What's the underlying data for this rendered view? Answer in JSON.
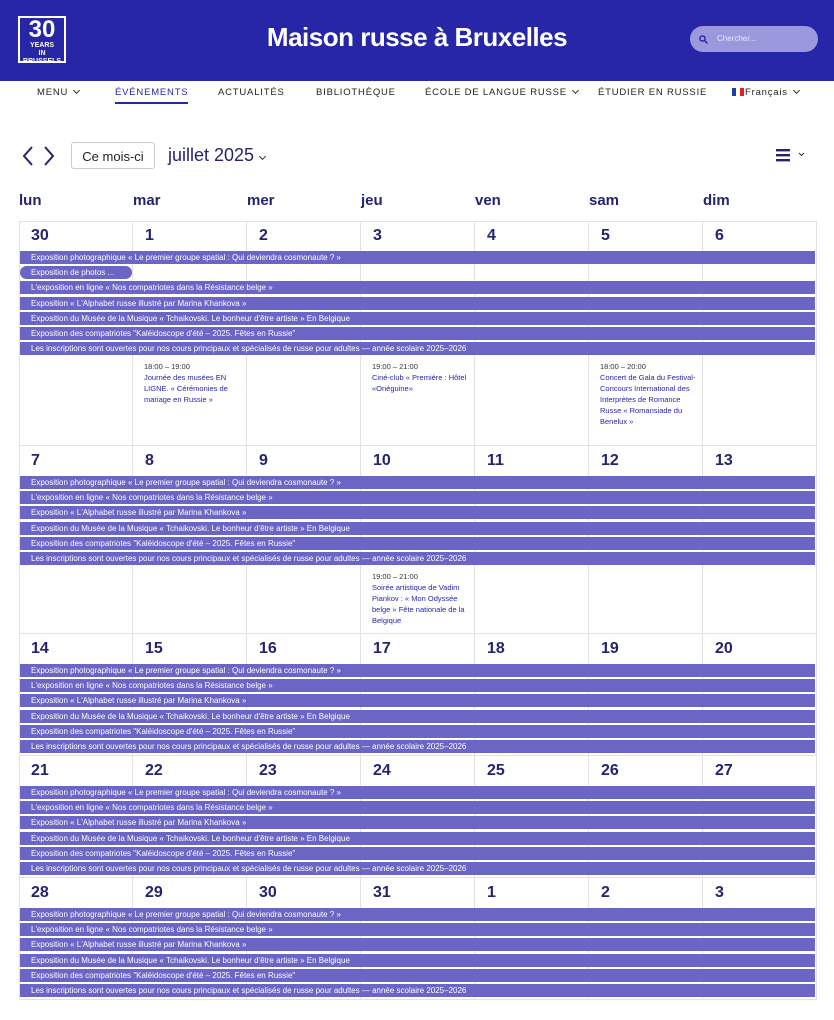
{
  "header": {
    "logo": {
      "number": "30",
      "line1": "YEARS",
      "line2": "IN BRUSSELS"
    },
    "title": "Maison russe à Bruxelles",
    "search_placeholder": "Chercher..."
  },
  "nav": [
    "MENU",
    "ÉVÉNEMENTS",
    "ACTUALITÉS",
    "BIBLIOTHÈQUE",
    "ÉCOLE DE LANGUE RUSSE",
    "ÉTUDIER EN RUSSIE",
    "Français"
  ],
  "toolbar": {
    "today": "Ce mois-ci",
    "month": "juillet 2025"
  },
  "weekdays": [
    "lun",
    "mar",
    "mer",
    "jeu",
    "ven",
    "sam",
    "dim"
  ],
  "weeks": [
    {
      "days": [
        30,
        1,
        2,
        3,
        4,
        5,
        6
      ],
      "bars": [
        "Exposition photographique « Le premier groupe spatial : Qui deviendra cosmonaute ? »",
        "Exposition de photos ...",
        "L'exposition en ligne « Nos compatriotes dans la Résistance belge »",
        "Exposition « L'Alphabet russe illustré par Marina Khankova »",
        "Exposition du Musée de la Musique « Tchaikovski. Le bonheur d'être artiste » En Belgique",
        "Exposition des compatriotes \"Kaléidoscope d'été – 2025. Fêtes en Russie\"",
        "Les inscriptions sont ouvertes pour nos cours principaux et spécialisés de russe pour adultes — année scolaire 2025–2026"
      ],
      "timed": [
        {
          "day": "mar",
          "time": "18:00 – 19:00",
          "title": "Journée des musées EN LIGNE. « Cérémonies de mariage en Russie »"
        },
        {
          "day": "jeu",
          "time": "19:00 – 21:00",
          "title": "Ciné-club « Première : Hôtel «Onéguine»"
        },
        {
          "day": "sam",
          "time": "18:00 – 20:00",
          "title": "Concert de Gala du Festival-Concours International des Interprètes de Romance Russe « Romansiade du Benelux »"
        }
      ]
    },
    {
      "days": [
        7,
        8,
        9,
        10,
        11,
        12,
        13
      ],
      "bars": [
        "Exposition photographique « Le premier groupe spatial : Qui deviendra cosmonaute ? »",
        "L'exposition en ligne « Nos compatriotes dans la Résistance belge »",
        "Exposition « L'Alphabet russe illustré par Marina Khankova »",
        "Exposition du Musée de la Musique « Tchaikovski. Le bonheur d'être artiste » En Belgique",
        "Exposition des compatriotes \"Kaléidoscope d'été – 2025. Fêtes en Russie\"",
        "Les inscriptions sont ouvertes pour nos cours principaux et spécialisés de russe pour adultes — année scolaire 2025–2026"
      ],
      "timed": [
        {
          "day": "jeu",
          "time": "19:00 – 21:00",
          "title": "Soirée artistique de Vadim Piankov : « Mon Odyssée belge » Fête nationale de la Belgique"
        }
      ]
    },
    {
      "days": [
        14,
        15,
        16,
        17,
        18,
        19,
        20
      ],
      "bars": [
        "Exposition photographique « Le premier groupe spatial : Qui deviendra cosmonaute ? »",
        "L'exposition en ligne « Nos compatriotes dans la Résistance belge »",
        "Exposition « L'Alphabet russe illustré par Marina Khankova »",
        "Exposition du Musée de la Musique « Tchaikovski. Le bonheur d'être artiste » En Belgique",
        "Exposition des compatriotes \"Kaléidoscope d'été – 2025. Fêtes en Russie\"",
        "Les inscriptions sont ouvertes pour nos cours principaux et spécialisés de russe pour adultes — année scolaire 2025–2026"
      ],
      "timed": []
    },
    {
      "days": [
        21,
        22,
        23,
        24,
        25,
        26,
        27
      ],
      "bars": [
        "Exposition photographique « Le premier groupe spatial : Qui deviendra cosmonaute ? »",
        "L'exposition en ligne « Nos compatriotes dans la Résistance belge »",
        "Exposition « L'Alphabet russe illustré par Marina Khankova »",
        "Exposition du Musée de la Musique « Tchaikovski. Le bonheur d'être artiste » En Belgique",
        "Exposition des compatriotes \"Kaléidoscope d'été – 2025. Fêtes en Russie\"",
        "Les inscriptions sont ouvertes pour nos cours principaux et spécialisés de russe pour adultes — année scolaire 2025–2026"
      ],
      "timed": []
    },
    {
      "days": [
        28,
        29,
        30,
        31,
        1,
        2,
        3
      ],
      "bars": [
        "Exposition photographique « Le premier groupe spatial : Qui deviendra cosmonaute ? »",
        "L'exposition en ligne « Nos compatriotes dans la Résistance belge »",
        "Exposition « L'Alphabet russe illustré par Marina Khankova »",
        "Exposition du Musée de la Musique « Tchaikovski. Le bonheur d'être artiste » En Belgique",
        "Exposition des compatriotes \"Kaléidoscope d'été – 2025. Fêtes en Russie\"",
        "Les inscriptions sont ouvertes pour nos cours principaux et spécialisés de russe pour adultes — année scolaire 2025–2026"
      ],
      "timed": []
    }
  ]
}
